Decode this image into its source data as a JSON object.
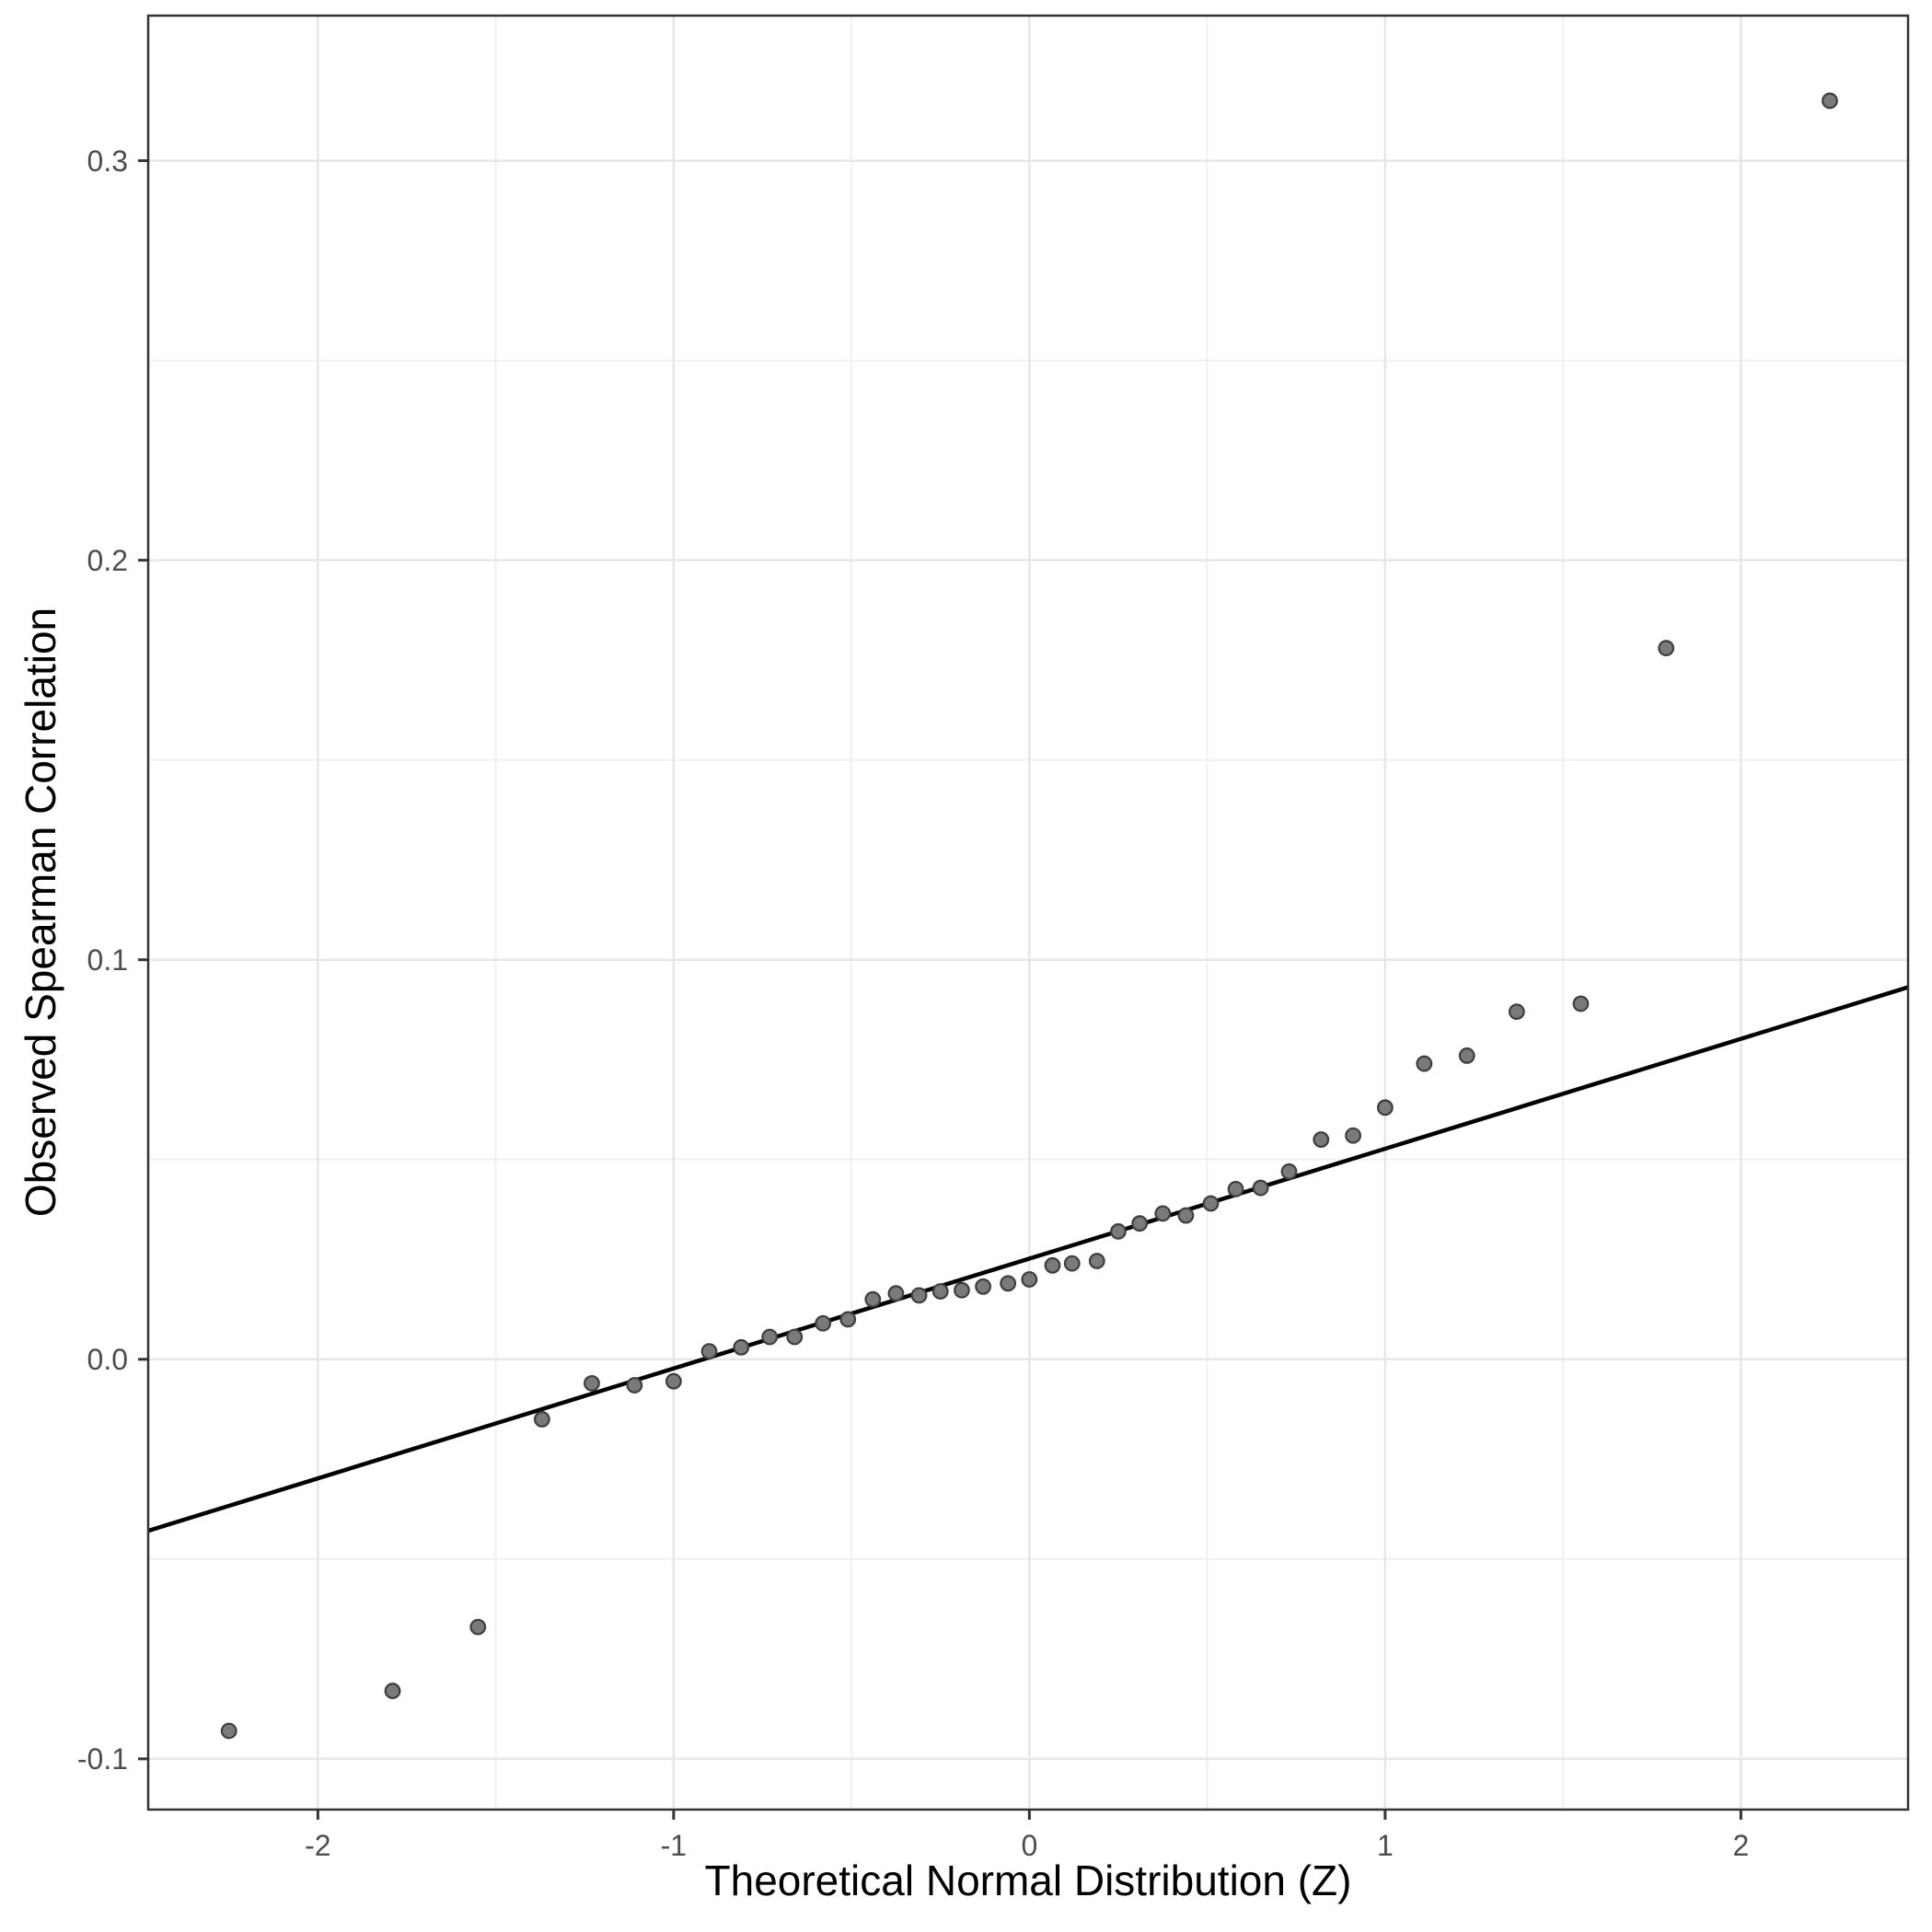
{
  "figure": {
    "x_axis_title": "Theoretical Normal Distribution (Z)",
    "y_axis_title": "Observed Spearman Correlation"
  },
  "colors": {
    "background": "#ffffff",
    "panel_background": "#ffffff",
    "panel_border": "#343434",
    "grid_major": "#e6e6e6",
    "grid_minor": "#f0f0f0",
    "tick_mark": "#343434",
    "tick_label": "#4d4d4d",
    "axis_title": "#000000",
    "point_fill": "#7a7a7a",
    "point_stroke": "#3e3e3e",
    "reference_line": "#000000"
  },
  "chart_data": {
    "type": "scatter",
    "title": "",
    "xlabel": "Theoretical Normal Distribution (Z)",
    "ylabel": "Observed Spearman Correlation",
    "xlim": [
      -2.477,
      2.47
    ],
    "ylim": [
      -0.1127,
      0.3363
    ],
    "grid": true,
    "legend": "none",
    "x_ticks": [
      -2,
      -1,
      0,
      1,
      2
    ],
    "x_tick_labels": [
      "-2",
      "-1",
      "0",
      "1",
      "2"
    ],
    "y_ticks": [
      -0.1,
      0.0,
      0.1,
      0.2,
      0.3
    ],
    "y_tick_labels": [
      "-0.1",
      "0.0",
      "0.1",
      "0.2",
      "0.3"
    ],
    "x_minor_ticks": [
      -1.5,
      -0.5,
      0.5,
      1.5
    ],
    "y_minor_ticks": [
      -0.05,
      0.05,
      0.15,
      0.25
    ],
    "points": [
      [
        -2.25,
        -0.093
      ],
      [
        -1.79,
        -0.083
      ],
      [
        -1.55,
        -0.067
      ],
      [
        -1.37,
        -0.015
      ],
      [
        -1.23,
        -0.006
      ],
      [
        -1.11,
        -0.0065
      ],
      [
        -1.0,
        -0.0055
      ],
      [
        -0.9,
        0.002
      ],
      [
        -0.81,
        0.003
      ],
      [
        -0.73,
        0.0056
      ],
      [
        -0.66,
        0.0056
      ],
      [
        -0.58,
        0.009
      ],
      [
        -0.51,
        0.01
      ],
      [
        -0.44,
        0.015
      ],
      [
        -0.375,
        0.0165
      ],
      [
        -0.31,
        0.016
      ],
      [
        -0.25,
        0.017
      ],
      [
        -0.19,
        0.0173
      ],
      [
        -0.13,
        0.0182
      ],
      [
        -0.06,
        0.019
      ],
      [
        0.0,
        0.02
      ],
      [
        0.065,
        0.0235
      ],
      [
        0.12,
        0.024
      ],
      [
        0.19,
        0.0246
      ],
      [
        0.25,
        0.032
      ],
      [
        0.31,
        0.034
      ],
      [
        0.375,
        0.0365
      ],
      [
        0.44,
        0.036
      ],
      [
        0.51,
        0.039
      ],
      [
        0.58,
        0.0426
      ],
      [
        0.65,
        0.0429
      ],
      [
        0.73,
        0.047
      ],
      [
        0.82,
        0.055
      ],
      [
        0.91,
        0.056
      ],
      [
        1.0,
        0.063
      ],
      [
        1.11,
        0.074
      ],
      [
        1.23,
        0.076
      ],
      [
        1.37,
        0.087
      ],
      [
        1.55,
        0.089
      ],
      [
        1.79,
        0.178
      ],
      [
        2.25,
        0.315
      ]
    ],
    "reference_line": {
      "intercept": 0.0252,
      "slope": 0.0275
    }
  }
}
